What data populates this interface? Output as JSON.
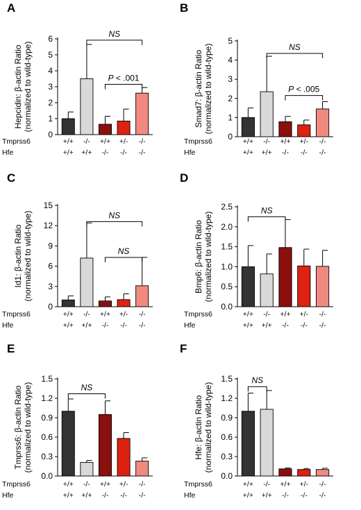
{
  "figure": {
    "colors": [
      "#333333",
      "#d9d9d9",
      "#8b0f0f",
      "#dd2211",
      "#f08a80"
    ],
    "row_labels": [
      "Tmprss6",
      "Hfe"
    ],
    "genotypes": {
      "Tmprss6": [
        "+/+",
        "-/-",
        "+/+",
        "+/-",
        "-/-"
      ],
      "Hfe": [
        "+/+",
        "+/+",
        "-/-",
        "-/-",
        "-/-"
      ]
    }
  },
  "chart_data": [
    {
      "type": "bar",
      "panel": "A",
      "ylabel": [
        "Hepcidin: β-actin Ratio",
        "(normalized to wild-type)"
      ],
      "ylim": [
        0,
        6
      ],
      "yticks": [
        0,
        1,
        2,
        3,
        4,
        5,
        6
      ],
      "categories": [
        "Tmprss6 +/+ Hfe +/+",
        "Tmprss6 -/- Hfe +/+",
        "Tmprss6 +/+ Hfe -/-",
        "Tmprss6 +/- Hfe -/-",
        "Tmprss6 -/- Hfe -/-"
      ],
      "values": [
        1.0,
        3.5,
        0.65,
        0.85,
        2.6
      ],
      "errors": [
        0.42,
        2.15,
        0.5,
        0.75,
        0.35
      ],
      "annotations": [
        {
          "from": 1,
          "to": 4,
          "text": "NS",
          "at": 5.92,
          "italic_all": true
        },
        {
          "from": 2,
          "to": 4,
          "text": "P < .001",
          "at": 3.15,
          "italic_all": false
        }
      ]
    },
    {
      "type": "bar",
      "panel": "B",
      "ylabel": [
        "Smad7: β-actin Ratio",
        "(normalized to wild-type)"
      ],
      "ylim": [
        0,
        5
      ],
      "yticks": [
        0,
        1,
        2,
        3,
        4,
        5
      ],
      "categories": [
        "Tmprss6 +/+ Hfe +/+",
        "Tmprss6 -/- Hfe +/+",
        "Tmprss6 +/+ Hfe -/-",
        "Tmprss6 +/- Hfe -/-",
        "Tmprss6 -/- Hfe -/-"
      ],
      "values": [
        1.0,
        2.35,
        0.78,
        0.62,
        1.45
      ],
      "errors": [
        0.5,
        1.85,
        0.28,
        0.25,
        0.38
      ],
      "annotations": [
        {
          "from": 1,
          "to": 4,
          "text": "NS",
          "at": 4.35,
          "italic_all": true
        },
        {
          "from": 2,
          "to": 4,
          "text": "P < .005",
          "at": 2.15,
          "italic_all": false
        }
      ]
    },
    {
      "type": "bar",
      "panel": "C",
      "ylabel": [
        "Id1: β-actin Ratio",
        "(normalized to wild-type)"
      ],
      "ylim": [
        0,
        15
      ],
      "yticks": [
        0,
        3,
        6,
        9,
        12,
        15
      ],
      "categories": [
        "Tmprss6 +/+ Hfe +/+",
        "Tmprss6 -/- Hfe +/+",
        "Tmprss6 +/+ Hfe -/-",
        "Tmprss6 +/- Hfe -/-",
        "Tmprss6 -/- Hfe -/-"
      ],
      "values": [
        1.0,
        7.2,
        0.85,
        1.05,
        3.1
      ],
      "errors": [
        0.6,
        5.2,
        0.6,
        0.85,
        4.2
      ],
      "annotations": [
        {
          "from": 1,
          "to": 4,
          "text": "NS",
          "at": 12.6,
          "italic_all": true
        },
        {
          "from": 2,
          "to": 4,
          "text": "NS",
          "at": 7.3,
          "italic_all": true
        }
      ]
    },
    {
      "type": "bar",
      "panel": "D",
      "ylabel": [
        "Bmp6: β-actin Ratio",
        "(normalized to wild-type)"
      ],
      "ylim": [
        0,
        2.5
      ],
      "yticks": [
        "0.0",
        "0.5",
        "1.0",
        "1.5",
        "2.0",
        "2.5"
      ],
      "categories": [
        "Tmprss6 +/+ Hfe +/+",
        "Tmprss6 -/- Hfe +/+",
        "Tmprss6 +/+ Hfe -/-",
        "Tmprss6 +/- Hfe -/-",
        "Tmprss6 -/- Hfe -/-"
      ],
      "values": [
        1.0,
        0.82,
        1.48,
        1.02,
        1.01
      ],
      "errors": [
        0.53,
        0.5,
        0.7,
        0.42,
        0.4
      ],
      "annotations": [
        {
          "from": 0,
          "to": 2,
          "text": "NS",
          "at": 2.25,
          "italic_all": true
        }
      ]
    },
    {
      "type": "bar",
      "panel": "E",
      "ylabel": [
        "Tmprss6: β-actin Ratio",
        "(normalized to wild-type)"
      ],
      "ylim": [
        0,
        1.5
      ],
      "yticks": [
        "0.0",
        "0.3",
        "0.6",
        "0.9",
        "1.2",
        "1.5"
      ],
      "categories": [
        "Tmprss6 +/+ Hfe +/+",
        "Tmprss6 -/- Hfe +/+",
        "Tmprss6 +/+ Hfe -/-",
        "Tmprss6 +/- Hfe -/-",
        "Tmprss6 -/- Hfe -/-"
      ],
      "values": [
        1.0,
        0.21,
        0.95,
        0.58,
        0.23
      ],
      "errors": [
        0.19,
        0.03,
        0.21,
        0.09,
        0.05
      ],
      "annotations": [
        {
          "from": 0,
          "to": 2,
          "text": "NS",
          "at": 1.27,
          "italic_all": true
        }
      ]
    },
    {
      "type": "bar",
      "panel": "F",
      "ylabel": [
        "Hfe: β-actin Ratio",
        "(normalized to wild-type)"
      ],
      "ylim": [
        0,
        1.5
      ],
      "yticks": [
        "0.0",
        "0.3",
        "0.6",
        "0.9",
        "1.2",
        "1.5"
      ],
      "categories": [
        "Tmprss6 +/+ Hfe +/+",
        "Tmprss6 -/- Hfe +/+",
        "Tmprss6 +/+ Hfe -/-",
        "Tmprss6 +/- Hfe -/-",
        "Tmprss6 -/- Hfe -/-"
      ],
      "values": [
        1.0,
        1.03,
        0.11,
        0.1,
        0.1
      ],
      "errors": [
        0.28,
        0.29,
        0.015,
        0.015,
        0.02
      ],
      "annotations": [
        {
          "from": 0,
          "to": 1,
          "text": "NS",
          "at": 1.38,
          "italic_all": true
        }
      ]
    }
  ]
}
